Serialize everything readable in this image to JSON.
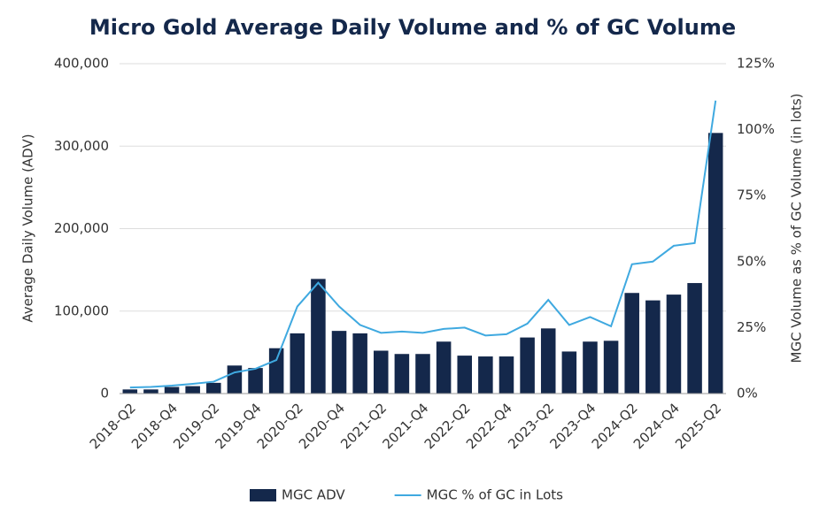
{
  "chart_data": {
    "type": "bar_line",
    "title": "Micro Gold Average Daily Volume and % of GC Volume",
    "y_label": "Average Daily Volume (ADV)",
    "y2_label": "MGC Volume as % of GC Volume (in lots)",
    "categories": [
      "2018-Q2",
      null,
      "2018-Q4",
      null,
      "2019-Q2",
      null,
      "2019-Q4",
      null,
      "2020-Q2",
      null,
      "2020-Q4",
      null,
      "2021-Q2",
      null,
      "2021-Q4",
      null,
      "2022-Q2",
      null,
      "2022-Q4",
      null,
      "2023-Q2",
      null,
      "2023-Q4",
      null,
      "2024-Q2",
      null,
      "2024-Q4",
      null,
      "2025-Q2"
    ],
    "series": [
      {
        "name": "MGC ADV",
        "type": "bar",
        "color": "#14284b",
        "values": [
          5000,
          5000,
          8000,
          9000,
          13000,
          34000,
          31000,
          55000,
          73000,
          139000,
          76000,
          73000,
          52000,
          48000,
          48000,
          63000,
          46000,
          45000,
          45000,
          68000,
          79000,
          51000,
          63000,
          64000,
          122000,
          113000,
          120000,
          134000,
          316000
        ]
      },
      {
        "name": "MGC % of GC in Lots",
        "type": "line",
        "color": "#3fa9e0",
        "axis": "y2",
        "values": [
          2.3,
          2.5,
          3,
          3.7,
          4.5,
          8,
          9.4,
          12.7,
          33,
          42,
          33,
          26,
          23,
          23.5,
          23,
          24.5,
          25,
          22,
          22.5,
          26.5,
          35.5,
          26,
          29,
          25.5,
          49,
          50,
          56,
          57,
          111
        ]
      }
    ],
    "ylim": [
      0,
      400000
    ],
    "yticks": [
      0,
      {
        "value": 100000,
        "label": "100,000"
      },
      {
        "value": 200000,
        "label": "200,000"
      },
      {
        "value": 300000,
        "label": "300,000"
      },
      {
        "value": 400000,
        "label": "400,000"
      }
    ],
    "y2lim": [
      0,
      125
    ],
    "y2ticks": [
      {
        "value": 0,
        "label": "0%"
      },
      {
        "value": 25,
        "label": "25%"
      },
      {
        "value": 50,
        "label": "50%"
      },
      {
        "value": 75,
        "label": "75%"
      },
      {
        "value": 100,
        "label": "100%"
      },
      {
        "value": 125,
        "label": "125%"
      }
    ],
    "grid": true,
    "legend": "bottom"
  }
}
